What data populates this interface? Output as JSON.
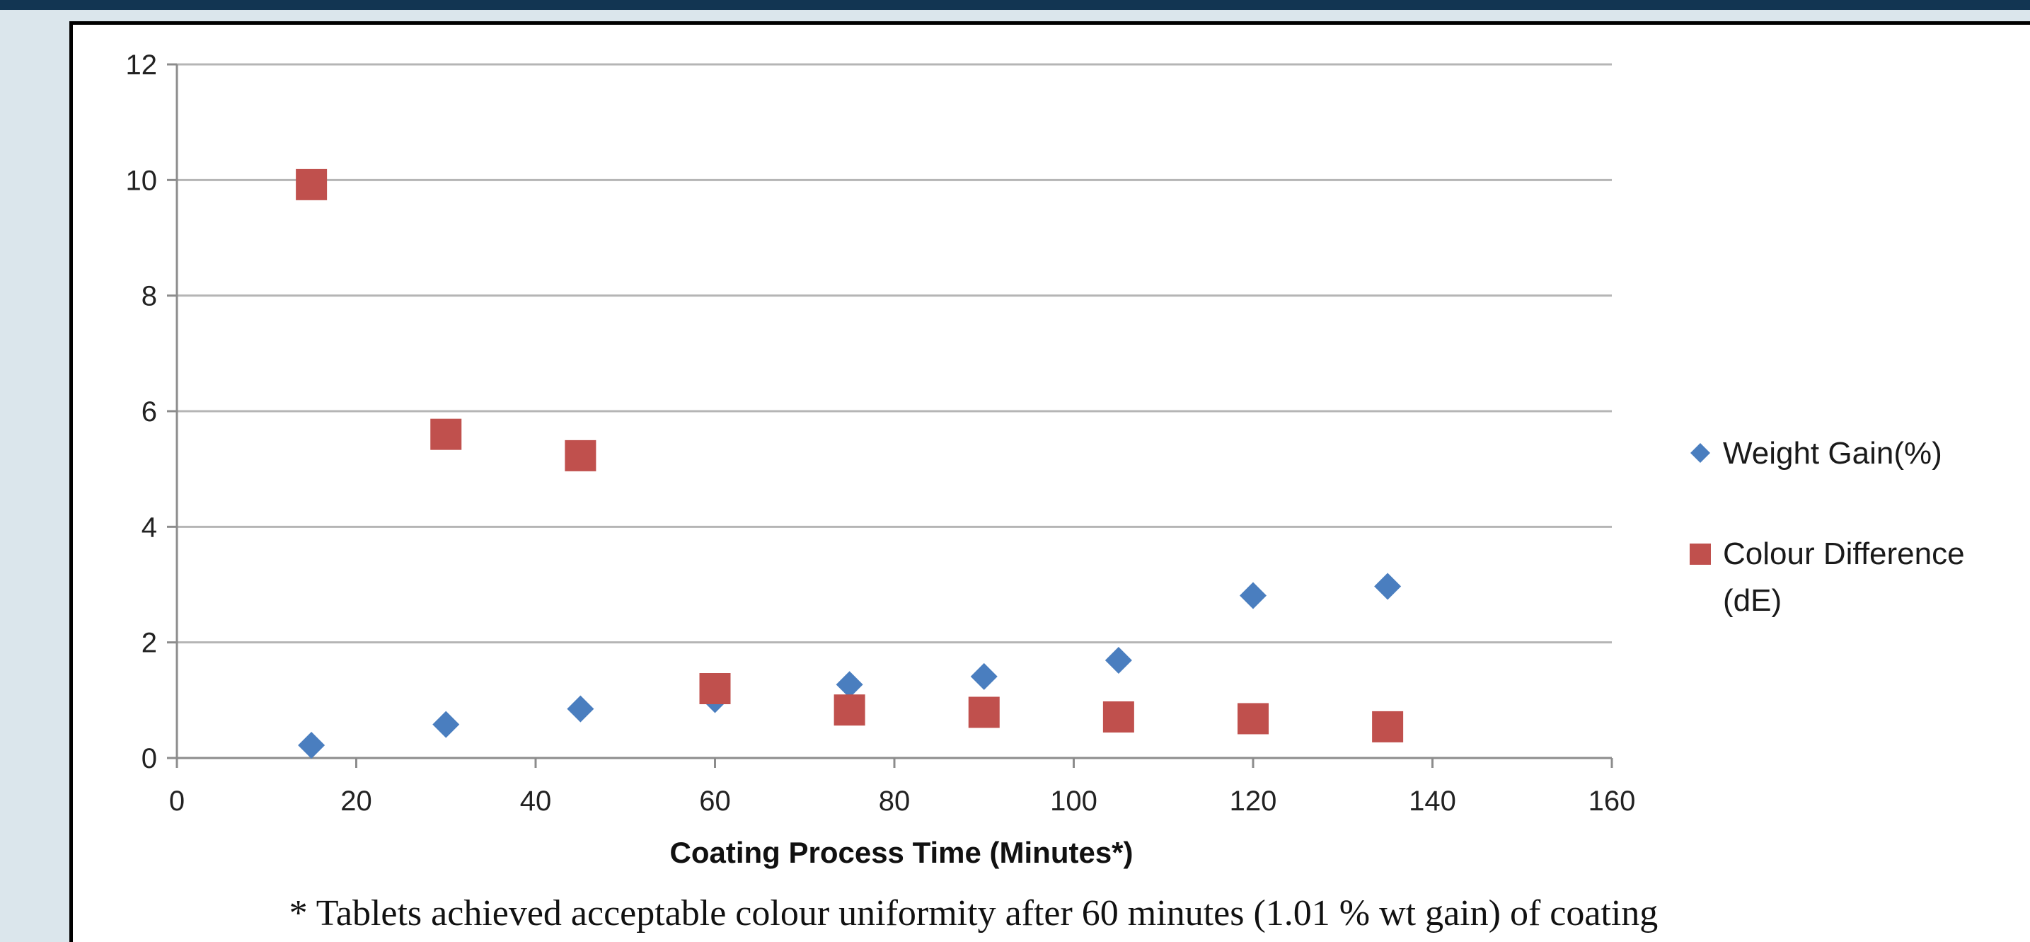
{
  "colors": {
    "frame_bg": "#dbe6ec",
    "top_band": "#123552",
    "weight_series": "#4a7ebf",
    "colour_series": "#c0504d",
    "gridline": "#b5b5b5",
    "axis": "#8c8c8c"
  },
  "chart_data": {
    "type": "scatter",
    "title": "",
    "xlabel": "Coating Process Time (Minutes*)",
    "ylabel": "",
    "xlim": [
      0,
      160
    ],
    "ylim": [
      0,
      12
    ],
    "x_ticks": [
      0,
      20,
      40,
      60,
      80,
      100,
      120,
      140,
      160
    ],
    "y_ticks": [
      0,
      2,
      4,
      6,
      8,
      10,
      12
    ],
    "grid": "horizontal",
    "legend_position": "right",
    "series": [
      {
        "name": "Weight Gain(%)",
        "marker": "diamond",
        "color": "#4a7ebf",
        "x": [
          15,
          30,
          45,
          60,
          75,
          90,
          105,
          120,
          135
        ],
        "y": [
          0.22,
          0.58,
          0.85,
          1.01,
          1.27,
          1.41,
          1.69,
          2.81,
          2.97
        ]
      },
      {
        "name": "Colour Difference (dE)",
        "legend_lines": [
          "Colour Difference",
          "(dE)"
        ],
        "marker": "square",
        "color": "#c0504d",
        "x": [
          15,
          30,
          45,
          60,
          75,
          90,
          105,
          120,
          135
        ],
        "y": [
          9.92,
          5.6,
          5.23,
          1.2,
          0.83,
          0.79,
          0.71,
          0.68,
          0.54
        ]
      }
    ],
    "footnote": "* Tablets achieved acceptable colour uniformity after 60 minutes (1.01 % wt gain) of coating"
  }
}
